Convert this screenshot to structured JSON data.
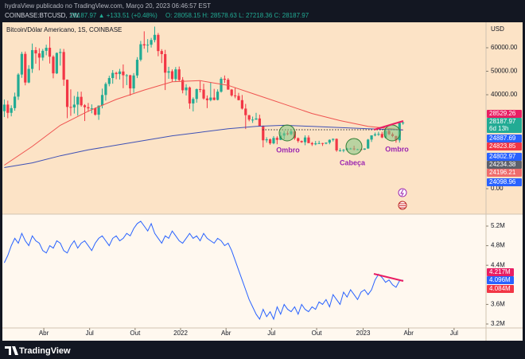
{
  "header": {
    "publisher": "hydraView publicado no TradingView.com, Março 20, 2023 06:46:57 EST",
    "symbol": "COINBASE:BTCUSD, 1W",
    "quote": "28187.97 ▲ +133.51 (+0.48%)",
    "ohlc": "O: 28058.15 H: 28578.63 L: 27218.36 C: 28187.97"
  },
  "footer": {
    "brand": "TradingView"
  },
  "chart_data": [
    {
      "type": "candlestick",
      "title": "Bitcoin/Dólar Americano, 1S, COINBASE",
      "y_unit": "USD",
      "up_color": "#22ab94",
      "down_color": "#f23645",
      "xlim": [
        -1,
        137.5
      ],
      "ylim": [
        -10500,
        70850
      ],
      "yticks": [
        {
          "value": 60000,
          "label": "60000.00"
        },
        {
          "value": 50000,
          "label": "50000.00"
        },
        {
          "value": 40000,
          "label": "40000.00"
        },
        {
          "value": 0,
          "label": "0.00"
        }
      ],
      "x": [
        0,
        1,
        2,
        3,
        4,
        5,
        6,
        7,
        8,
        9,
        10,
        11,
        12,
        13,
        14,
        15,
        16,
        17,
        18,
        19,
        20,
        21,
        22,
        23,
        24,
        25,
        26,
        27,
        28,
        29,
        30,
        31,
        32,
        33,
        34,
        35,
        36,
        37,
        38,
        39,
        40,
        41,
        42,
        43,
        44,
        45,
        46,
        47,
        48,
        49,
        50,
        51,
        52,
        53,
        54,
        55,
        56,
        57,
        58,
        59,
        60,
        61,
        62,
        63,
        64,
        65,
        66,
        67,
        68,
        69,
        70,
        71,
        72,
        73,
        74,
        75,
        76,
        77,
        78,
        79,
        80,
        81,
        82,
        83,
        84,
        85,
        86,
        87,
        88,
        89,
        90,
        91,
        92,
        93,
        94,
        95,
        96,
        97,
        98,
        99,
        100,
        101,
        102,
        103,
        104,
        105,
        106,
        107,
        108,
        109,
        110,
        111,
        112,
        113,
        114
      ],
      "open": [
        33000,
        35800,
        32300,
        34300,
        39200,
        48600,
        57400,
        45200,
        51000,
        59000,
        57600,
        55800,
        58700,
        60000,
        56200,
        49100,
        57800,
        58200,
        46400,
        34800,
        34600,
        35800,
        39100,
        35500,
        34700,
        34200,
        34200,
        31500,
        35400,
        39900,
        44600,
        47100,
        49300,
        48800,
        49900,
        48300,
        48300,
        42700,
        48200,
        54900,
        61500,
        61000,
        61300,
        63300,
        65500,
        58600,
        57300,
        49400,
        50000,
        46700,
        50800,
        46300,
        41900,
        43100,
        36300,
        38200,
        42400,
        42200,
        38400,
        37700,
        38800,
        37800,
        41300,
        46800,
        46400,
        42200,
        39700,
        39500,
        37700,
        34100,
        31300,
        29400,
        29400,
        29900,
        26600,
        20600,
        21000,
        19300,
        21600,
        20800,
        22600,
        23600,
        23200,
        24400,
        21500,
        20300,
        19800,
        21800,
        19400,
        18900,
        19300,
        19400,
        19200,
        19600,
        20800,
        21200,
        16300,
        16300,
        16500,
        17100,
        17100,
        16800,
        16800,
        16600,
        17100,
        20900,
        22700,
        23100,
        23300,
        21800,
        24600,
        23200,
        22400,
        20600,
        28058.15
      ],
      "high": [
        38000,
        37500,
        35500,
        40900,
        49200,
        58300,
        58400,
        52600,
        61800,
        60300,
        59800,
        59500,
        61300,
        64800,
        56800,
        58000,
        59600,
        59500,
        46500,
        42300,
        39500,
        41300,
        41300,
        36000,
        36500,
        35900,
        34600,
        35400,
        42600,
        45300,
        48100,
        50500,
        49800,
        51000,
        52900,
        48800,
        48500,
        49200,
        56000,
        62900,
        67000,
        63700,
        64200,
        69000,
        66300,
        59400,
        59100,
        51900,
        50800,
        51800,
        52000,
        47500,
        44500,
        43500,
        38900,
        42600,
        45900,
        44700,
        39700,
        45300,
        42500,
        42300,
        47500,
        48200,
        47100,
        42400,
        42900,
        40800,
        39900,
        36100,
        31400,
        30700,
        32300,
        31500,
        26900,
        21900,
        21400,
        22400,
        22300,
        24200,
        24600,
        24600,
        25200,
        25000,
        21800,
        20500,
        22700,
        22700,
        19900,
        20300,
        20400,
        19500,
        19700,
        21000,
        21400,
        21400,
        17200,
        16900,
        17400,
        17400,
        18300,
        17000,
        16900,
        17200,
        21200,
        22700,
        23900,
        24200,
        24200,
        25200,
        25200,
        23900,
        22600,
        28400,
        28578.63
      ],
      "low": [
        30500,
        30000,
        30800,
        33200,
        37800,
        47200,
        44000,
        44900,
        49300,
        53200,
        50400,
        54500,
        56800,
        53300,
        47000,
        48800,
        52400,
        43800,
        30000,
        31000,
        32000,
        31100,
        34900,
        28800,
        32700,
        32100,
        31100,
        29300,
        34200,
        37500,
        43600,
        44700,
        46600,
        46500,
        42800,
        44100,
        39600,
        40800,
        47100,
        54200,
        59600,
        58000,
        60100,
        62300,
        56400,
        53500,
        42000,
        46800,
        45600,
        45600,
        45800,
        40600,
        39700,
        34000,
        32900,
        36600,
        41000,
        37900,
        34300,
        37200,
        37600,
        37600,
        40900,
        45000,
        42100,
        39200,
        38500,
        37600,
        33700,
        25400,
        28700,
        28000,
        29300,
        26600,
        17600,
        19600,
        18700,
        18900,
        18900,
        20700,
        21000,
        22700,
        22700,
        20800,
        19600,
        19500,
        18500,
        19400,
        18200,
        18500,
        19000,
        18200,
        18900,
        18900,
        20100,
        15700,
        15800,
        15500,
        16100,
        16700,
        16300,
        16400,
        16400,
        16500,
        17000,
        19900,
        22300,
        22500,
        21500,
        21400,
        22800,
        21900,
        19600,
        19600,
        27218.36
      ],
      "close": [
        35800,
        32300,
        34300,
        39200,
        48600,
        57400,
        45200,
        51000,
        59000,
        57600,
        55800,
        58700,
        60000,
        56200,
        49100,
        57800,
        58200,
        46400,
        34800,
        34600,
        35800,
        39100,
        35500,
        34700,
        34200,
        34200,
        31500,
        35400,
        39900,
        44600,
        47100,
        49300,
        48800,
        49900,
        48300,
        48300,
        42700,
        48200,
        54900,
        61500,
        61000,
        61300,
        63300,
        65500,
        58600,
        57300,
        49400,
        50000,
        46700,
        50800,
        46300,
        41900,
        43100,
        36300,
        38200,
        42400,
        42200,
        38400,
        37700,
        38800,
        37800,
        41300,
        46800,
        46400,
        42200,
        39700,
        39500,
        37700,
        34100,
        31300,
        29400,
        29400,
        29900,
        26600,
        20600,
        21000,
        19300,
        21600,
        20800,
        22600,
        23600,
        23200,
        24400,
        21500,
        20300,
        19800,
        21800,
        19400,
        18900,
        19300,
        19400,
        19200,
        19600,
        20800,
        21200,
        16300,
        16300,
        16500,
        17100,
        17100,
        16800,
        16800,
        16600,
        17100,
        20900,
        22700,
        23100,
        23300,
        21800,
        24600,
        23200,
        22400,
        20600,
        28058.15,
        28187.97
      ],
      "series": [
        {
          "color": "#ef5350",
          "x": [
            0,
            8,
            16,
            24,
            32,
            40,
            48,
            56,
            64,
            72,
            80,
            88,
            96,
            104,
            114
          ],
          "values": [
            10000,
            18000,
            27000,
            33000,
            38000,
            42000,
            45500,
            46000,
            44000,
            40000,
            36000,
            32000,
            29000,
            26500,
            25000
          ]
        },
        {
          "color": "#3f51b5",
          "x": [
            0,
            8,
            16,
            24,
            32,
            40,
            48,
            56,
            64,
            72,
            80,
            88,
            96,
            104,
            114
          ],
          "values": [
            9000,
            11000,
            14000,
            16500,
            18500,
            20500,
            22500,
            24000,
            25500,
            26500,
            27000,
            26500,
            26000,
            25500,
            25000
          ]
        }
      ],
      "annotations": [
        "Ombro",
        "Cabeça",
        "Ombro"
      ],
      "badges": [
        {
          "value": 28529.26,
          "color": "#e91e63"
        },
        {
          "value": 28187.97,
          "countdown": "6d 13h",
          "color": "#22ab94"
        },
        {
          "value": 24887.69,
          "color": "#2962ff"
        },
        {
          "value": 24823.85,
          "color": "#f23645"
        },
        {
          "value": 24802.97,
          "color": "#2962ff"
        },
        {
          "value": 24234.38,
          "color": "#5d606b"
        },
        {
          "value": 24196.21,
          "color": "#ef6c6c"
        },
        {
          "value": 24098.96,
          "color": "#2962ff"
        }
      ]
    },
    {
      "type": "line",
      "xlim": [
        -1,
        137.5
      ],
      "ylim": [
        3119000,
        5428000
      ],
      "yticks": [
        {
          "value": 5200000,
          "label": "5.2M"
        },
        {
          "value": 4800000,
          "label": "4.8M"
        },
        {
          "value": 4400000,
          "label": "4.4M"
        },
        {
          "value": 3600000,
          "label": "3.6M"
        },
        {
          "value": 3200000,
          "label": "3.2M"
        }
      ],
      "xticks": [
        {
          "value": 11.3,
          "label": "Abr"
        },
        {
          "value": 24.4,
          "label": "Jul"
        },
        {
          "value": 37.4,
          "label": "Out"
        },
        {
          "value": 50.4,
          "label": "2022"
        },
        {
          "value": 63.4,
          "label": "Abr"
        },
        {
          "value": 76.4,
          "label": "Jul"
        },
        {
          "value": 89.3,
          "label": "Out"
        },
        {
          "value": 102.6,
          "label": "2023"
        },
        {
          "value": 115.6,
          "label": "Abr"
        },
        {
          "value": 128.6,
          "label": "Jul"
        }
      ],
      "x": [
        0,
        1,
        2,
        3,
        4,
        5,
        6,
        7,
        8,
        9,
        10,
        11,
        12,
        13,
        14,
        15,
        16,
        17,
        18,
        19,
        20,
        21,
        22,
        23,
        24,
        25,
        26,
        27,
        28,
        29,
        30,
        31,
        32,
        33,
        34,
        35,
        36,
        37,
        38,
        39,
        40,
        41,
        42,
        43,
        44,
        45,
        46,
        47,
        48,
        49,
        50,
        51,
        52,
        53,
        54,
        55,
        56,
        57,
        58,
        59,
        60,
        61,
        62,
        63,
        64,
        65,
        66,
        67,
        68,
        69,
        70,
        71,
        72,
        73,
        74,
        75,
        76,
        77,
        78,
        79,
        80,
        81,
        82,
        83,
        84,
        85,
        86,
        87,
        88,
        89,
        90,
        91,
        92,
        93,
        94,
        95,
        96,
        97,
        98,
        99,
        100,
        101,
        102,
        103,
        104,
        105,
        106,
        107,
        108,
        109,
        110,
        111,
        112,
        113,
        114
      ],
      "series": [
        {
          "color": "#2962ff",
          "values": [
            4450000,
            4600000,
            4800000,
            4950000,
            4850000,
            5050000,
            4900000,
            4800000,
            5000000,
            4900000,
            4850000,
            4700000,
            4650000,
            4800000,
            4750000,
            4900000,
            4850000,
            4700000,
            4650000,
            4800000,
            4900000,
            4750000,
            4850000,
            4900000,
            4800000,
            4700000,
            4850000,
            4950000,
            5000000,
            4900000,
            4800000,
            4950000,
            5000000,
            4900000,
            4950000,
            5050000,
            5000000,
            5150000,
            5250000,
            5300000,
            5200000,
            5100000,
            5250000,
            5050000,
            4950000,
            4850000,
            5000000,
            4950000,
            5100000,
            5000000,
            4900000,
            4850000,
            4950000,
            5050000,
            4950000,
            5000000,
            4900000,
            5050000,
            4950000,
            4900000,
            4850000,
            4950000,
            4900000,
            4800000,
            4850000,
            4700000,
            4500000,
            4300000,
            4100000,
            3900000,
            3700000,
            3550000,
            3400000,
            3300000,
            3500000,
            3350000,
            3450000,
            3300000,
            3550000,
            3400000,
            3600000,
            3500000,
            3450000,
            3550000,
            3400000,
            3600000,
            3500000,
            3450000,
            3550000,
            3500000,
            3650000,
            3600000,
            3700000,
            3550000,
            3800000,
            3700000,
            3600000,
            3850000,
            3750000,
            3900000,
            3800000,
            3700000,
            3850000,
            3900000,
            3800000,
            3900000,
            4100000,
            4217000,
            4150000,
            4050000,
            4100000,
            4000000,
            3950000,
            4084000,
            4096000
          ]
        }
      ],
      "badges": [
        {
          "value": 4217000,
          "label": "4.217M",
          "color": "#e91e63"
        },
        {
          "value": 4096000,
          "label": "4.096M",
          "color": "#2962ff"
        },
        {
          "value": 4084000,
          "label": "4.084M",
          "color": "#f23645"
        }
      ]
    }
  ]
}
